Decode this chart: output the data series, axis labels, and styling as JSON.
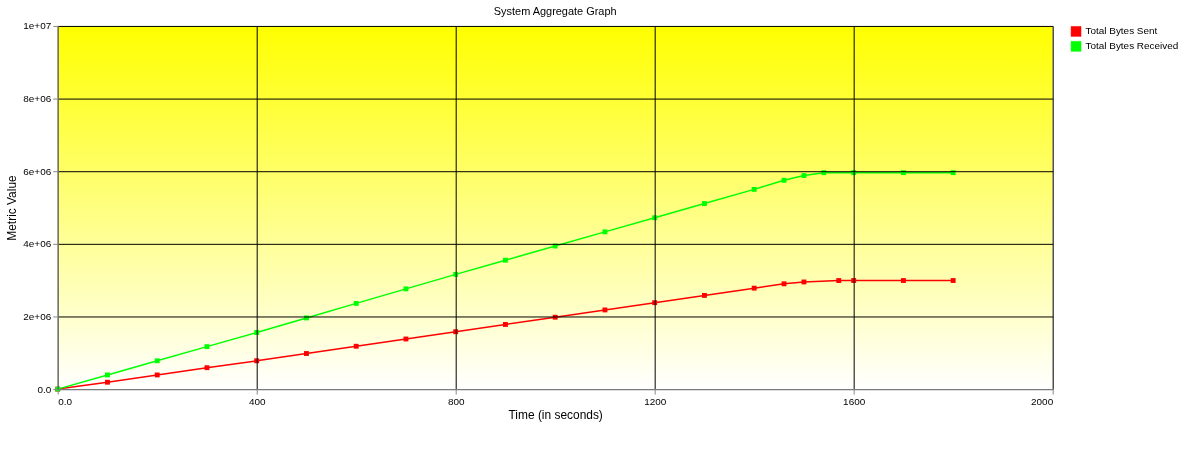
{
  "chart_data": {
    "type": "line",
    "title": "System Aggregate Graph",
    "xlabel": "Time (in seconds)",
    "ylabel": "Metric Value",
    "series": [
      {
        "name": "Total Bytes Sent",
        "color": "#ff0000",
        "x": [
          0,
          100,
          200,
          300,
          400,
          500,
          600,
          700,
          800,
          900,
          1000,
          1100,
          1200,
          1300,
          1400,
          1460,
          1500,
          1570,
          1600,
          1700,
          1800
        ],
        "values": [
          0,
          190000,
          390000,
          590000,
          780000,
          980000,
          1180000,
          1380000,
          1580000,
          1780000,
          1980000,
          2180000,
          2380000,
          2580000,
          2780000,
          2900000,
          2950000,
          2990000,
          2990000,
          2990000,
          2990000
        ]
      },
      {
        "name": "Total Bytes Received",
        "color": "#00ff00",
        "x": [
          0,
          100,
          200,
          300,
          400,
          500,
          600,
          700,
          800,
          900,
          1000,
          1100,
          1200,
          1300,
          1400,
          1460,
          1500,
          1540,
          1600,
          1700,
          1800
        ],
        "values": [
          0,
          390000,
          780000,
          1170000,
          1560000,
          1960000,
          2360000,
          2760000,
          3160000,
          3550000,
          3940000,
          4330000,
          4720000,
          5110000,
          5500000,
          5750000,
          5880000,
          5960000,
          5960000,
          5960000,
          5960000
        ]
      }
    ],
    "xlim": [
      0,
      2000
    ],
    "xticks": [
      {
        "value": 0,
        "label": "0.0"
      },
      400,
      800,
      1200,
      1600,
      2000
    ],
    "ylim": [
      0,
      10000000
    ],
    "yticks": [
      {
        "value": 0,
        "label": "0.0"
      },
      {
        "value": 2000000,
        "label": "2e+06"
      },
      {
        "value": 4000000,
        "label": "4e+06"
      },
      {
        "value": 6000000,
        "label": "6e+06"
      },
      {
        "value": 8000000,
        "label": "8e+06"
      },
      {
        "value": 10000000,
        "label": "1e+07"
      }
    ],
    "grid": true,
    "legend": "right",
    "marker": "square",
    "line_style": "solid"
  }
}
